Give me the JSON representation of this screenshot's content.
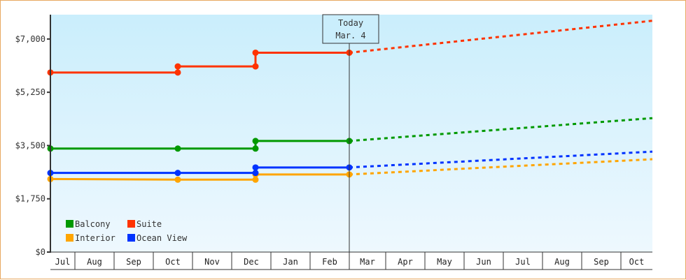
{
  "chart_data": {
    "type": "line",
    "title": "",
    "xlabel": "",
    "ylabel": "",
    "ylim": [
      0,
      7800
    ],
    "y_ticks": [
      "$0",
      "$1,750",
      "$3,500",
      "$5,250",
      "$7,000"
    ],
    "y_tick_values": [
      0,
      1750,
      3500,
      5250,
      7000
    ],
    "categories": [
      "Jul",
      "Aug",
      "Sep",
      "Oct",
      "Nov",
      "Dec",
      "Jan",
      "Feb",
      "Mar",
      "Apr",
      "May",
      "Jun",
      "Jul",
      "Aug",
      "Sep",
      "Oct"
    ],
    "grid": false,
    "legend_position": "bottom-left inside plot",
    "today_marker": {
      "line1": "Today",
      "line2": "Mar. 4"
    },
    "series": [
      {
        "name": "Balcony",
        "color": "#009900",
        "historical": [
          {
            "x": "Jul",
            "y": 3400
          },
          {
            "x": "Oct",
            "y": 3400
          },
          {
            "x": "Dec",
            "y": 3400
          },
          {
            "x": "Dec",
            "y": 3650
          },
          {
            "x": "Mar 4",
            "y": 3650
          }
        ],
        "projected": [
          {
            "x": "Mar 4",
            "y": 3650
          },
          {
            "x": "Oct",
            "y": 4400
          }
        ]
      },
      {
        "name": "Suite",
        "color": "#ff3300",
        "historical": [
          {
            "x": "Jul",
            "y": 5900
          },
          {
            "x": "Oct",
            "y": 5900
          },
          {
            "x": "Oct",
            "y": 6100
          },
          {
            "x": "Dec",
            "y": 6100
          },
          {
            "x": "Dec",
            "y": 6550
          },
          {
            "x": "Mar 4",
            "y": 6550
          }
        ],
        "projected": [
          {
            "x": "Mar 4",
            "y": 6550
          },
          {
            "x": "Oct",
            "y": 7600
          }
        ]
      },
      {
        "name": "Interior",
        "color": "#ffa500",
        "historical": [
          {
            "x": "Jul",
            "y": 2400
          },
          {
            "x": "Oct",
            "y": 2380
          },
          {
            "x": "Dec",
            "y": 2380
          },
          {
            "x": "Dec",
            "y": 2550
          },
          {
            "x": "Mar 4",
            "y": 2550
          }
        ],
        "projected": [
          {
            "x": "Mar 4",
            "y": 2550
          },
          {
            "x": "Oct",
            "y": 3050
          }
        ]
      },
      {
        "name": "Ocean View",
        "color": "#0033ff",
        "historical": [
          {
            "x": "Jul",
            "y": 2600
          },
          {
            "x": "Oct",
            "y": 2600
          },
          {
            "x": "Dec",
            "y": 2600
          },
          {
            "x": "Dec",
            "y": 2780
          },
          {
            "x": "Mar 4",
            "y": 2780
          }
        ],
        "projected": [
          {
            "x": "Mar 4",
            "y": 2780
          },
          {
            "x": "Oct",
            "y": 3300
          }
        ]
      }
    ]
  },
  "legend": {
    "items": [
      {
        "label": "Balcony",
        "color": "#009900"
      },
      {
        "label": "Suite",
        "color": "#ff3300"
      },
      {
        "label": "Interior",
        "color": "#ffa500"
      },
      {
        "label": "Ocean View",
        "color": "#0033ff"
      }
    ]
  },
  "colors": {
    "border": "#e8a860",
    "axis": "#333333",
    "plot_bg_top": "#caeefc",
    "plot_bg_bottom": "#eef8fe"
  }
}
